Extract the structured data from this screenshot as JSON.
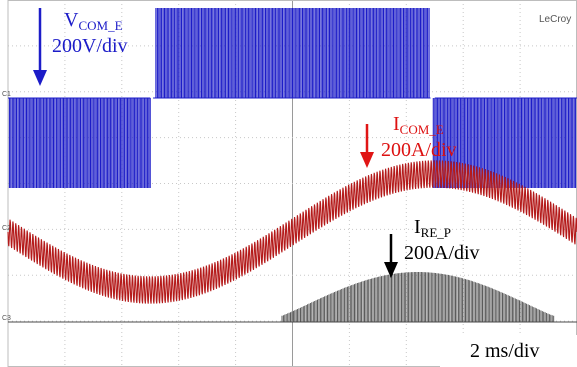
{
  "chart_data": {
    "type": "line",
    "title": "",
    "instrument": "LeCroy",
    "time_scale": "2 ms/div",
    "x_divisions": 10,
    "y_divisions": 8,
    "grid": true,
    "channel_markers": [
      "C1",
      "C2",
      "C3"
    ],
    "series": [
      {
        "name": "V_COM_E",
        "label_main": "V",
        "label_sub": "COM_E",
        "scale": "200V/div",
        "color": "#1c1cc8",
        "description": "PWM switching waveform",
        "time_ms": [
          0,
          5,
          5.1,
          14.8,
          15,
          20
        ],
        "low_div": [
          -1.0,
          -1.0,
          null,
          null,
          -1.0,
          -1.0
        ],
        "high_div": [
          1.0,
          1.0,
          1.0,
          1.0,
          1.0,
          1.0
        ],
        "baseline_div": 1.0
      },
      {
        "name": "I_COM_E",
        "label_main": "I",
        "label_sub": "COM_E",
        "scale": "200A/div",
        "color": "#b41a1a",
        "description": "Sinusoidal current with high-frequency ripple",
        "time_ms": [
          0,
          2.5,
          5,
          7.5,
          10,
          12.5,
          15,
          17.5,
          20
        ],
        "value_div": [
          0.1,
          -1.3,
          -2.0,
          -1.3,
          0.1,
          1.4,
          2.0,
          1.4,
          0.1
        ],
        "ripple_div": 0.25
      },
      {
        "name": "I_RE_P",
        "label_main": "I",
        "label_sub": "RE_P",
        "scale": "200A/div",
        "color": "#4a4a4a",
        "description": "Positive half-cycle pulsed current",
        "time_ms": [
          0,
          9.5,
          10,
          12.5,
          15,
          17.5,
          19
        ],
        "value_div": [
          0,
          0,
          0.2,
          0.9,
          1.3,
          0.9,
          0
        ]
      }
    ]
  }
}
